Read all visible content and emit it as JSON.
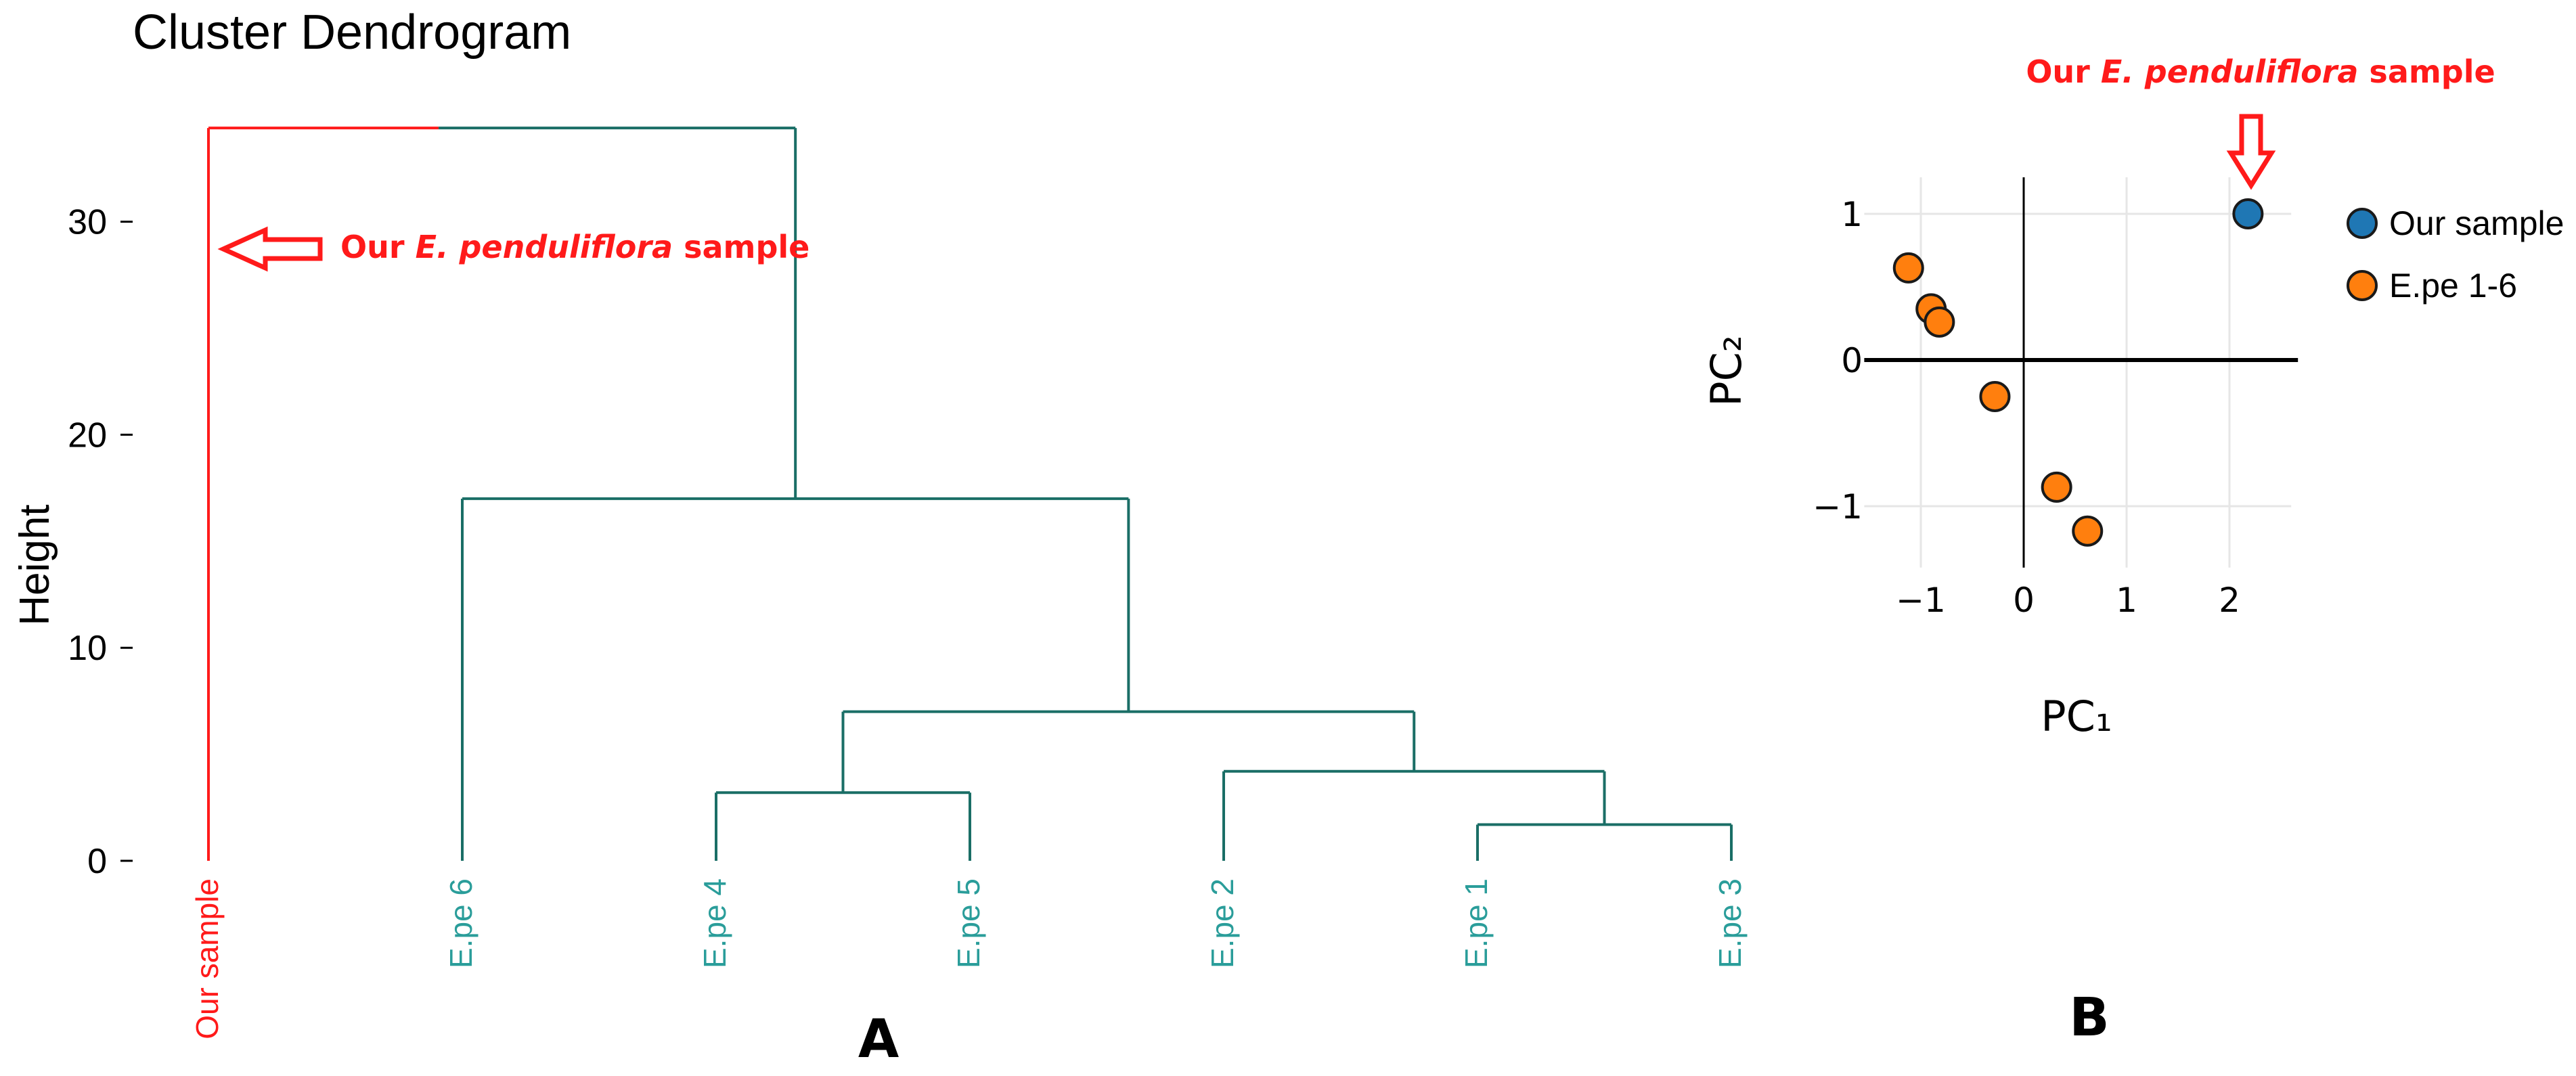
{
  "colors": {
    "accent_red": "#ff1a1a",
    "teal": "#1a6e66",
    "label_teal": "#2a9d9a",
    "axis": "#000000",
    "grid": "#e6e6e6",
    "our_sample_point": "#1f77b4",
    "epe_point": "#ff7f0e"
  },
  "panel_labels": {
    "a": "A",
    "b": "B"
  },
  "chart_data": [
    {
      "type": "dendrogram",
      "title": "Cluster Dendrogram",
      "ylabel": "Height",
      "ylim": [
        0,
        34.5
      ],
      "yticks": [
        0,
        10,
        20,
        30
      ],
      "leaves": [
        "Our sample",
        "E.pe 6",
        "E.pe 4",
        "E.pe 5",
        "E.pe 2",
        "E.pe 1",
        "E.pe 3"
      ],
      "leaf_colors": [
        "accent_red",
        "label_teal",
        "label_teal",
        "label_teal",
        "label_teal",
        "label_teal",
        "label_teal"
      ],
      "merges": [
        {
          "left": "E.pe 1",
          "right": "E.pe 3",
          "height": 1.7
        },
        {
          "left": "E.pe 4",
          "right": "E.pe 5",
          "height": 3.2
        },
        {
          "left": "E.pe 2",
          "right": "(E.pe 1, E.pe 3)",
          "height": 4.2
        },
        {
          "left": "(E.pe 4, E.pe 5)",
          "right": "(E.pe 2, (E.pe 1, E.pe 3))",
          "height": 7.0
        },
        {
          "left": "E.pe 6",
          "right": "(E.pe 4 … E.pe 3)",
          "height": 17.0
        },
        {
          "left": "Our sample",
          "right": "(E.pe 6 … E.pe 3)",
          "height": 34.4
        }
      ],
      "annotation": {
        "prefix": "Our ",
        "italic": "E. penduliflora",
        "suffix": " sample",
        "points_to_height": 28.7
      }
    },
    {
      "type": "scatter",
      "xlabel": "PC₁",
      "ylabel": "PC₂",
      "xlim": [
        -1.55,
        2.6
      ],
      "ylim": [
        -1.42,
        1.25
      ],
      "xticks": [
        -1,
        0,
        1,
        2
      ],
      "xtick_labels": [
        "−1",
        "0",
        "1",
        "2"
      ],
      "yticks": [
        -1,
        0,
        1
      ],
      "ytick_labels": [
        "−1",
        "0",
        "1"
      ],
      "grid": true,
      "legend_position": "right",
      "series": [
        {
          "name": "Our sample",
          "color_key": "our_sample_point",
          "points": [
            [
              2.18,
              1.0
            ]
          ]
        },
        {
          "name": "E.pe 1-6",
          "color_key": "epe_point",
          "points": [
            [
              -1.12,
              0.63
            ],
            [
              -0.9,
              0.35
            ],
            [
              -0.82,
              0.26
            ],
            [
              -0.28,
              -0.25
            ],
            [
              0.32,
              -0.87
            ],
            [
              0.62,
              -1.17
            ]
          ]
        }
      ],
      "annotation": {
        "prefix": "Our ",
        "italic": "E. penduliflora",
        "suffix": " sample",
        "points_to_series": "Our sample"
      }
    }
  ]
}
